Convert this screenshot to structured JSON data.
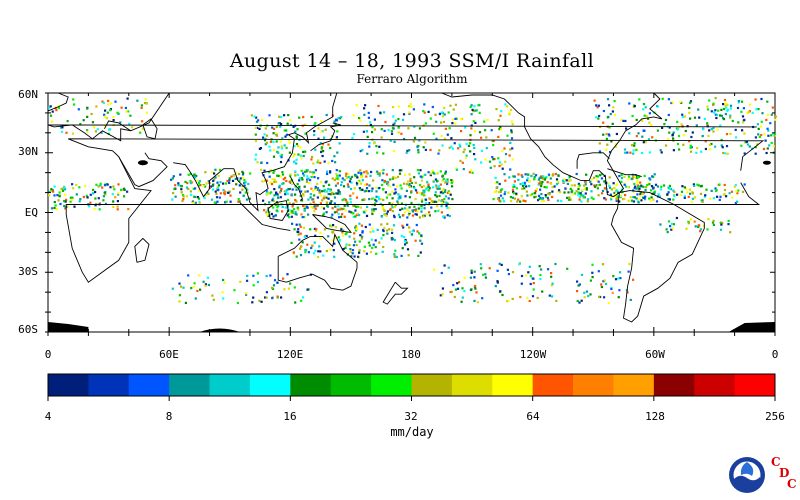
{
  "title": "August 14 – 18, 1993 SSM/I Rainfall",
  "subtitle": "Ferraro Algorithm",
  "lat_labels": [
    "60N",
    "30N",
    "EQ",
    "30S",
    "60S"
  ],
  "lon_labels": [
    "0",
    "60E",
    "120E",
    "180",
    "120W",
    "60W",
    "0"
  ],
  "colorbar": {
    "labels": [
      "4",
      "8",
      "16",
      "32",
      "64",
      "128",
      "256"
    ],
    "units": "mm/day",
    "colors": [
      "#001f7a",
      "#0033b8",
      "#0055ff",
      "#009999",
      "#00cccc",
      "#00ffff",
      "#008c00",
      "#00bb00",
      "#00ee00",
      "#b3b300",
      "#dddd00",
      "#ffff00",
      "#ff5500",
      "#ff7f00",
      "#ffa000",
      "#8b0000",
      "#cc0000",
      "#ff0000"
    ]
  },
  "logo": {
    "org": "NOAA",
    "letters": [
      "C",
      "D",
      "C"
    ],
    "letter_color": "#dd0000"
  }
}
